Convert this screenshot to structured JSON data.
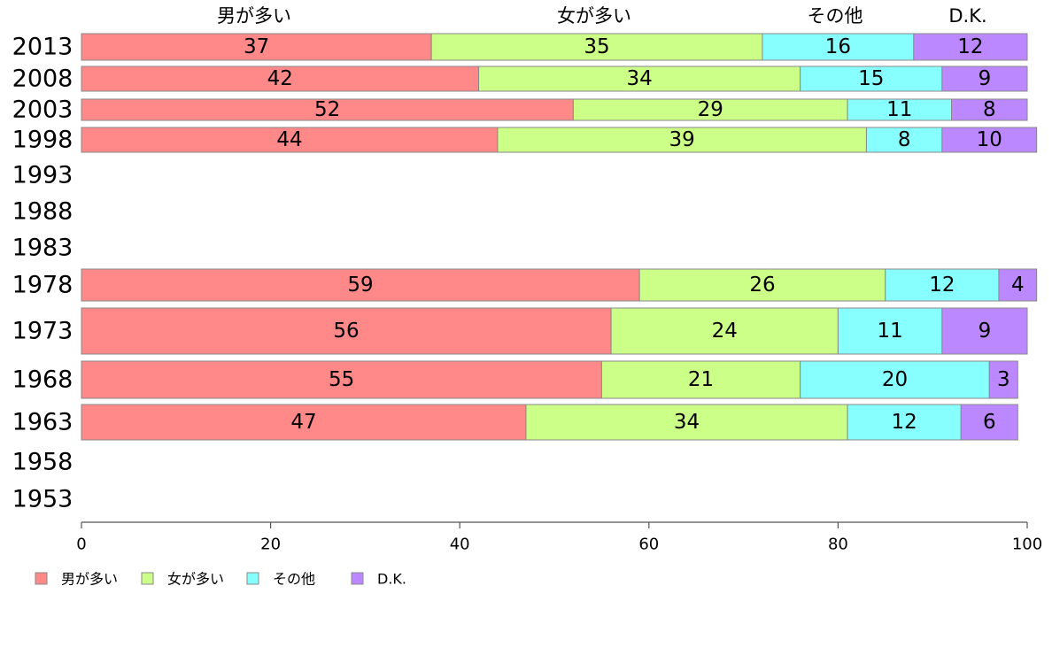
{
  "chart_data": {
    "type": "bar",
    "orientation": "horizontal",
    "stacked": true,
    "categories": [
      "2013",
      "2008",
      "2003",
      "1998",
      "1993",
      "1988",
      "1983",
      "1978",
      "1973",
      "1968",
      "1963",
      "1958",
      "1953"
    ],
    "series": [
      {
        "name": "男が多い",
        "color": "#ff8888",
        "values": [
          37,
          42,
          52,
          44,
          null,
          null,
          null,
          59,
          56,
          55,
          47,
          null,
          null
        ]
      },
      {
        "name": "女が多い",
        "color": "#ccff88",
        "values": [
          35,
          34,
          29,
          39,
          null,
          null,
          null,
          26,
          24,
          21,
          34,
          null,
          null
        ]
      },
      {
        "name": "その他",
        "color": "#88ffff",
        "values": [
          16,
          15,
          11,
          8,
          null,
          null,
          null,
          12,
          11,
          20,
          12,
          null,
          null
        ]
      },
      {
        "name": "D.K.",
        "color": "#bb88ff",
        "values": [
          12,
          9,
          8,
          10,
          null,
          null,
          null,
          4,
          9,
          3,
          6,
          null,
          null
        ]
      }
    ],
    "xlim": [
      0,
      100
    ],
    "x_ticks": [
      0,
      20,
      40,
      60,
      80,
      100
    ],
    "top_labels": [
      "男が多い",
      "女が多い",
      "その他",
      "D.K."
    ],
    "legend_position": "bottom-left",
    "grid": false
  }
}
